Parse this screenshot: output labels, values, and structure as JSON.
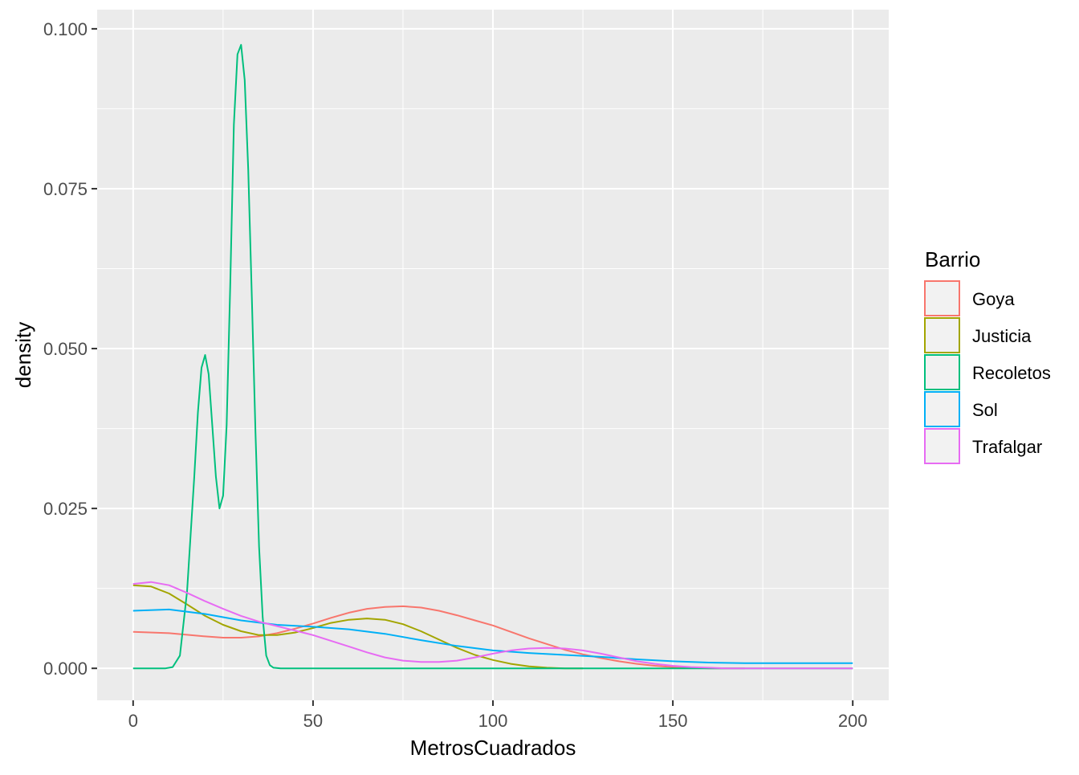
{
  "chart_data": {
    "type": "line",
    "subtype": "density",
    "title": "",
    "xlabel": "MetrosCuadrados",
    "ylabel": "density",
    "xlim": [
      -10,
      210
    ],
    "ylim": [
      -0.005,
      0.103
    ],
    "x_ticks": [
      0,
      50,
      100,
      150,
      200
    ],
    "x_tick_labels": [
      "0",
      "50",
      "100",
      "150",
      "200"
    ],
    "y_ticks": [
      0.0,
      0.025,
      0.05,
      0.075,
      0.1
    ],
    "y_tick_labels": [
      "0.000",
      "0.025",
      "0.050",
      "0.075",
      "0.100"
    ],
    "grid": true,
    "legend": {
      "title": "Barrio",
      "position": "right"
    },
    "series": [
      {
        "name": "Goya",
        "color": "#F8766D",
        "x": [
          0,
          10,
          20,
          25,
          30,
          35,
          40,
          45,
          50,
          55,
          60,
          65,
          70,
          75,
          80,
          85,
          90,
          95,
          100,
          105,
          110,
          115,
          120,
          125,
          130,
          135,
          140,
          145,
          150,
          155,
          160,
          165,
          170
        ],
        "y": [
          0.0057,
          0.0055,
          0.005,
          0.0048,
          0.0048,
          0.005,
          0.0055,
          0.0062,
          0.007,
          0.0079,
          0.0087,
          0.0093,
          0.0096,
          0.0097,
          0.0095,
          0.009,
          0.0083,
          0.0075,
          0.0067,
          0.0057,
          0.0047,
          0.0038,
          0.0029,
          0.0022,
          0.0016,
          0.0011,
          0.0007,
          0.0004,
          0.0002,
          0.0001,
          0.0,
          0.0,
          0.0
        ]
      },
      {
        "name": "Justicia",
        "color": "#A3A500",
        "x": [
          0,
          5,
          10,
          15,
          20,
          25,
          30,
          35,
          40,
          45,
          50,
          55,
          60,
          65,
          70,
          75,
          80,
          85,
          90,
          95,
          100,
          105,
          110,
          115,
          120,
          125
        ],
        "y": [
          0.013,
          0.0128,
          0.0117,
          0.01,
          0.0082,
          0.0068,
          0.0058,
          0.0052,
          0.0052,
          0.0056,
          0.0063,
          0.0071,
          0.0076,
          0.0078,
          0.0076,
          0.0069,
          0.0058,
          0.0045,
          0.0032,
          0.0021,
          0.0013,
          0.0007,
          0.0003,
          0.0001,
          0.0,
          0.0
        ]
      },
      {
        "name": "Recoletos",
        "color": "#00BF7D",
        "x": [
          0,
          9,
          11,
          13,
          15,
          17,
          18,
          19,
          20,
          21,
          22,
          23,
          24,
          25,
          26,
          27,
          28,
          29,
          30,
          31,
          32,
          33,
          34,
          35,
          36,
          37,
          38,
          39,
          41,
          60,
          100,
          150,
          200
        ],
        "y": [
          0.0,
          0.0,
          0.0002,
          0.002,
          0.012,
          0.03,
          0.04,
          0.047,
          0.049,
          0.046,
          0.038,
          0.03,
          0.025,
          0.027,
          0.038,
          0.06,
          0.085,
          0.096,
          0.0975,
          0.092,
          0.078,
          0.058,
          0.037,
          0.019,
          0.008,
          0.002,
          0.0005,
          0.0001,
          0.0,
          0.0,
          0.0,
          0.0,
          0.0
        ]
      },
      {
        "name": "Sol",
        "color": "#00B0F6",
        "x": [
          0,
          10,
          20,
          30,
          40,
          50,
          60,
          70,
          80,
          90,
          100,
          110,
          120,
          130,
          140,
          150,
          160,
          170,
          180,
          190,
          200
        ],
        "y": [
          0.009,
          0.0092,
          0.0085,
          0.0075,
          0.0068,
          0.0065,
          0.0061,
          0.0054,
          0.0044,
          0.0035,
          0.0028,
          0.0024,
          0.0021,
          0.0018,
          0.0014,
          0.0011,
          0.0009,
          0.0008,
          0.0008,
          0.0008,
          0.0008
        ]
      },
      {
        "name": "Trafalgar",
        "color": "#E76BF3",
        "x": [
          0,
          5,
          10,
          15,
          20,
          25,
          30,
          35,
          40,
          45,
          50,
          55,
          60,
          65,
          70,
          75,
          80,
          85,
          90,
          95,
          100,
          105,
          110,
          115,
          120,
          125,
          130,
          135,
          140,
          145,
          150,
          155,
          160,
          165,
          170,
          180,
          200
        ],
        "y": [
          0.0132,
          0.0135,
          0.013,
          0.0118,
          0.0105,
          0.0093,
          0.0082,
          0.0073,
          0.0066,
          0.0059,
          0.0052,
          0.0043,
          0.0034,
          0.0025,
          0.0017,
          0.0012,
          0.001,
          0.001,
          0.0012,
          0.0017,
          0.0023,
          0.0028,
          0.0031,
          0.0032,
          0.0031,
          0.0028,
          0.0023,
          0.0017,
          0.0011,
          0.0007,
          0.0004,
          0.0002,
          0.0001,
          0.0,
          0.0,
          0.0,
          0.0
        ]
      }
    ]
  }
}
